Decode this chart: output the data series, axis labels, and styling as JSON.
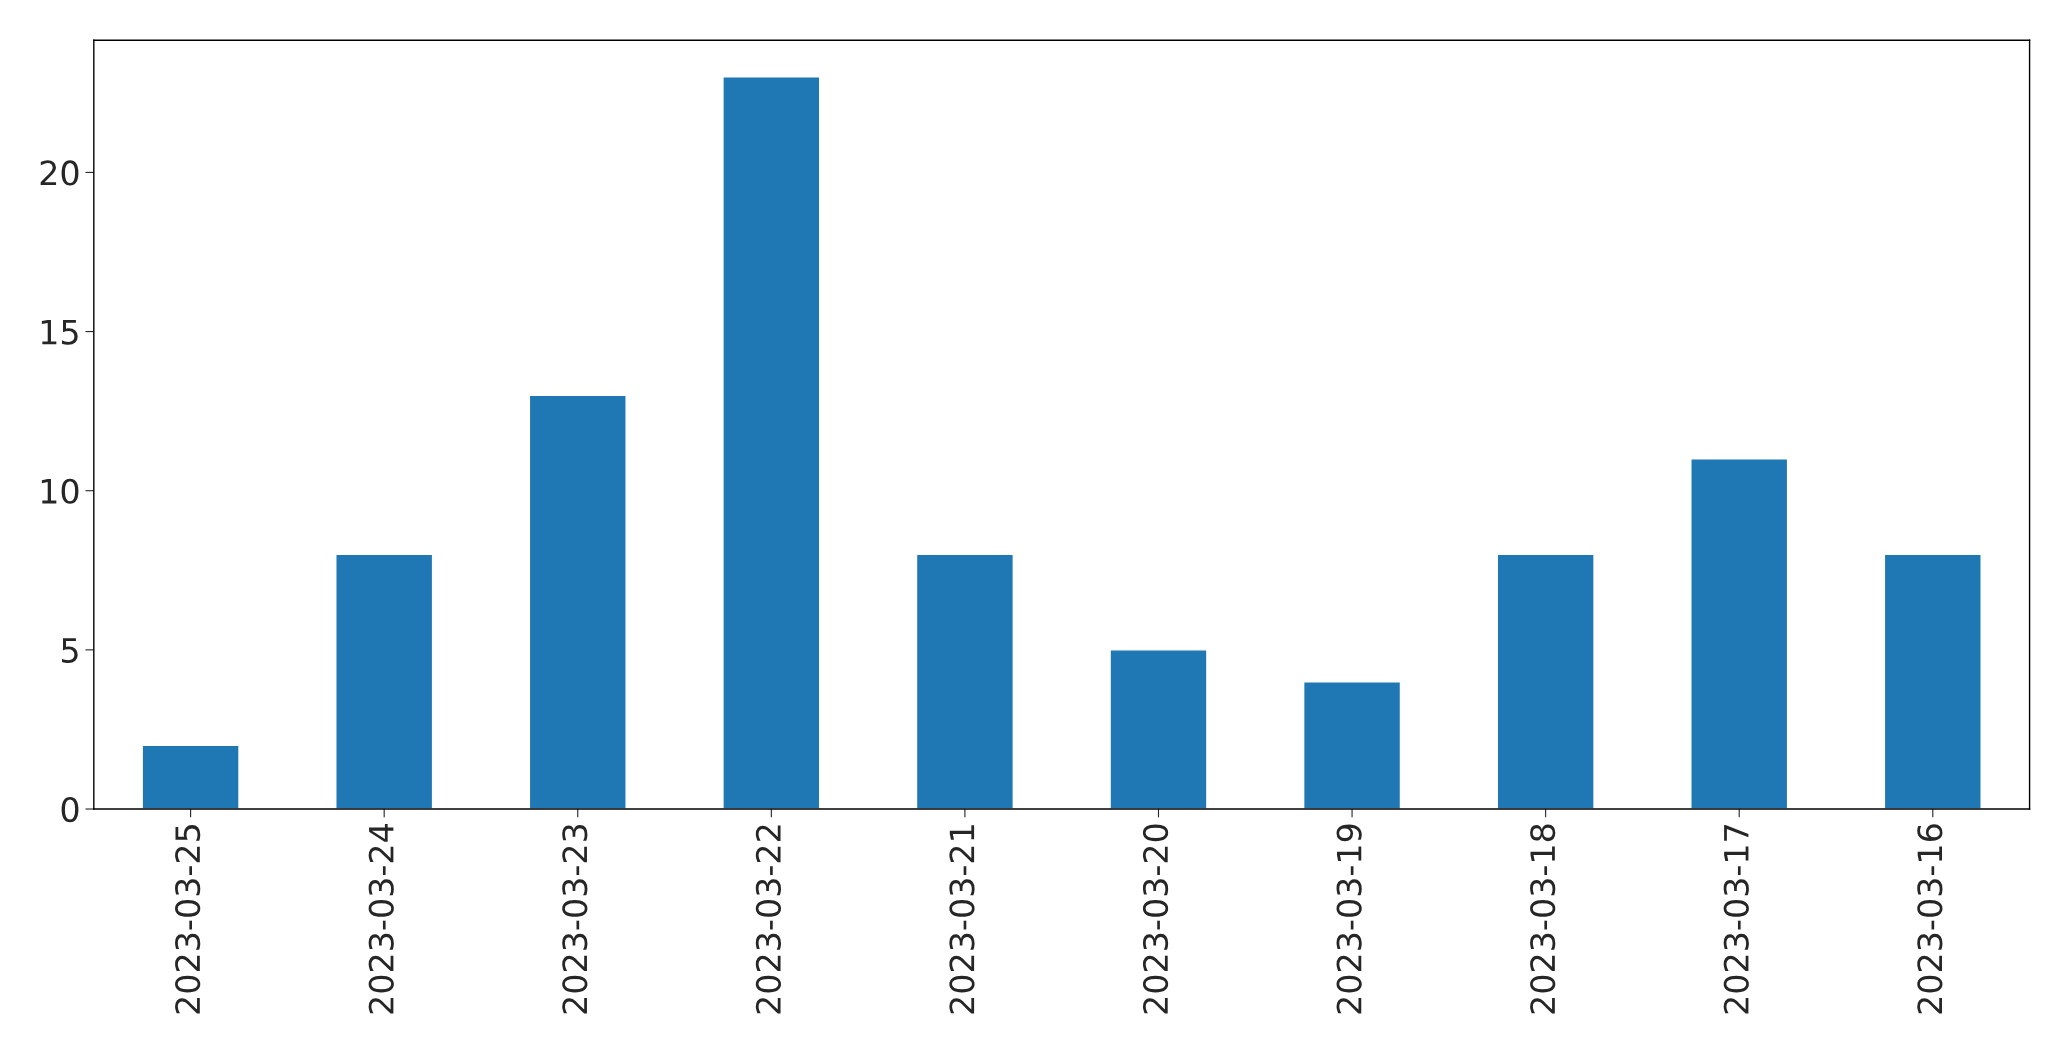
{
  "chart_data": {
    "type": "bar",
    "categories": [
      "2023-03-25",
      "2023-03-24",
      "2023-03-23",
      "2023-03-22",
      "2023-03-21",
      "2023-03-20",
      "2023-03-19",
      "2023-03-18",
      "2023-03-17",
      "2023-03-16"
    ],
    "values": [
      2,
      8,
      13,
      23,
      8,
      5,
      4,
      8,
      11,
      8
    ],
    "color": "#1f77b4",
    "ylim": [
      0,
      24.15
    ],
    "yticks": [
      0,
      5,
      10,
      15,
      20
    ],
    "grid": false,
    "legend": false
  }
}
